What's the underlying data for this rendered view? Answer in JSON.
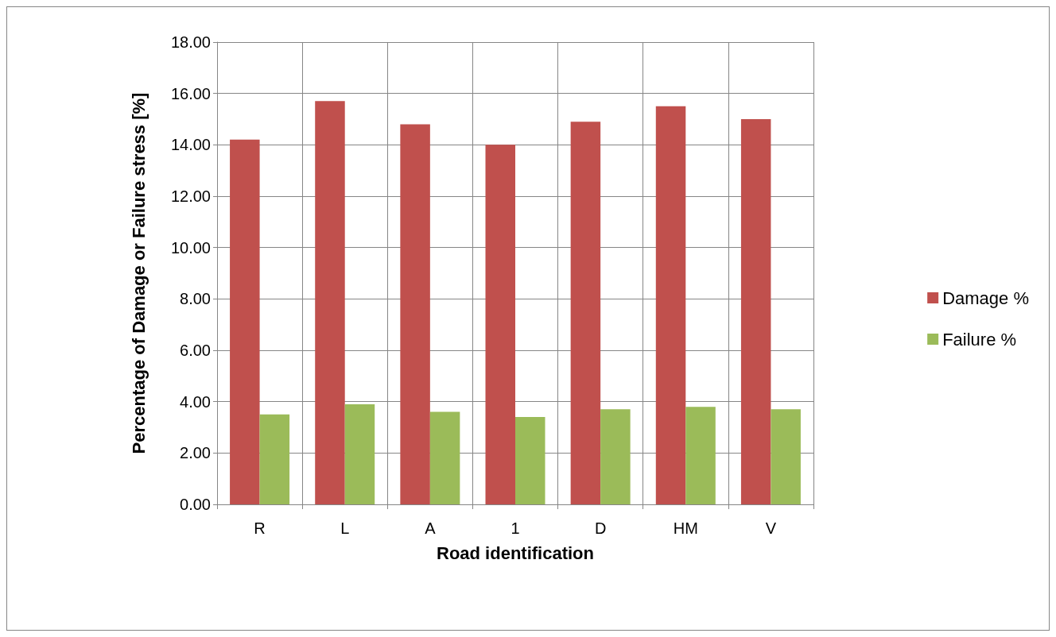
{
  "chart_data": {
    "type": "bar",
    "xlabel": "Road identification",
    "ylabel": "Percentage of Damage or Failure stress [%]",
    "categories": [
      "R",
      "L",
      "A",
      "1",
      "D",
      "HM",
      "V"
    ],
    "series": [
      {
        "name": "Damage %",
        "color": "#c0504d",
        "values": [
          14.2,
          15.7,
          14.8,
          14.0,
          14.9,
          15.5,
          15.0
        ]
      },
      {
        "name": "Failure %",
        "color": "#9bbb59",
        "values": [
          3.5,
          3.9,
          3.6,
          3.4,
          3.7,
          3.8,
          3.7
        ]
      }
    ],
    "ylim": [
      0,
      18
    ],
    "yticks": [
      {
        "value": 0,
        "label": "0.00"
      },
      {
        "value": 2,
        "label": "2.00"
      },
      {
        "value": 4,
        "label": "4.00"
      },
      {
        "value": 6,
        "label": "6.00"
      },
      {
        "value": 8,
        "label": "8.00"
      },
      {
        "value": 10,
        "label": "10.00"
      },
      {
        "value": 12,
        "label": "12.00"
      },
      {
        "value": 14,
        "label": "14.00"
      },
      {
        "value": 16,
        "label": "16.00"
      },
      {
        "value": 18,
        "label": "18.00"
      }
    ],
    "grid": true,
    "legend": "right"
  }
}
